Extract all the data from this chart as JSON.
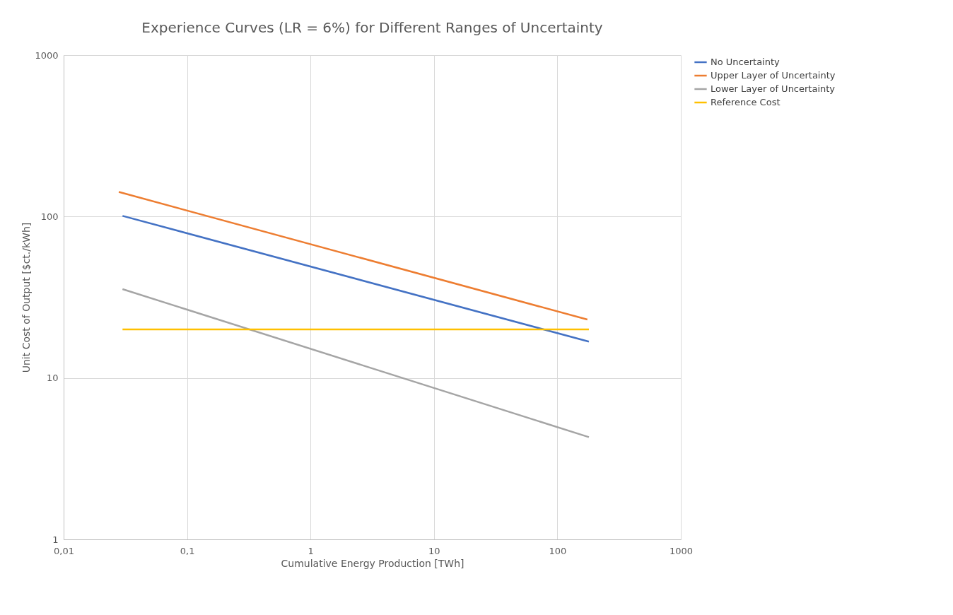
{
  "chart_data": {
    "type": "line",
    "title": "Experience Curves (LR = 6%) for Different Ranges of Uncertainty",
    "xlabel": "Cumulative Energy Production [TWh]",
    "ylabel": "Unit Cost of Output [$ct./kWh]",
    "log": "xy",
    "grid": true,
    "legend": "right",
    "marker": "none",
    "line_style": "solid",
    "xlim": [
      0.01,
      1000
    ],
    "ylim": [
      1,
      1000
    ],
    "xticks": [
      {
        "value": 0.01,
        "label": "0,01"
      },
      {
        "value": 0.1,
        "label": "0,1"
      },
      1,
      10,
      100,
      1000
    ],
    "yticks": [
      1,
      10,
      100,
      1000
    ],
    "series": [
      {
        "name": "No Uncertainty",
        "color": "#4472c4",
        "x": [
          0.03,
          180
        ],
        "values": [
          101,
          16.8
        ]
      },
      {
        "name": "Upper Layer of Uncertainty",
        "color": "#ed7d31",
        "x": [
          0.028,
          175
        ],
        "values": [
          142,
          23
        ]
      },
      {
        "name": "Lower Layer of Uncertainty",
        "color": "#a5a5a5",
        "x": [
          0.03,
          180
        ],
        "values": [
          35.5,
          4.3
        ]
      },
      {
        "name": "Reference Cost",
        "color": "#ffc000",
        "x": [
          0.03,
          180
        ],
        "values": [
          20,
          20
        ]
      }
    ]
  }
}
